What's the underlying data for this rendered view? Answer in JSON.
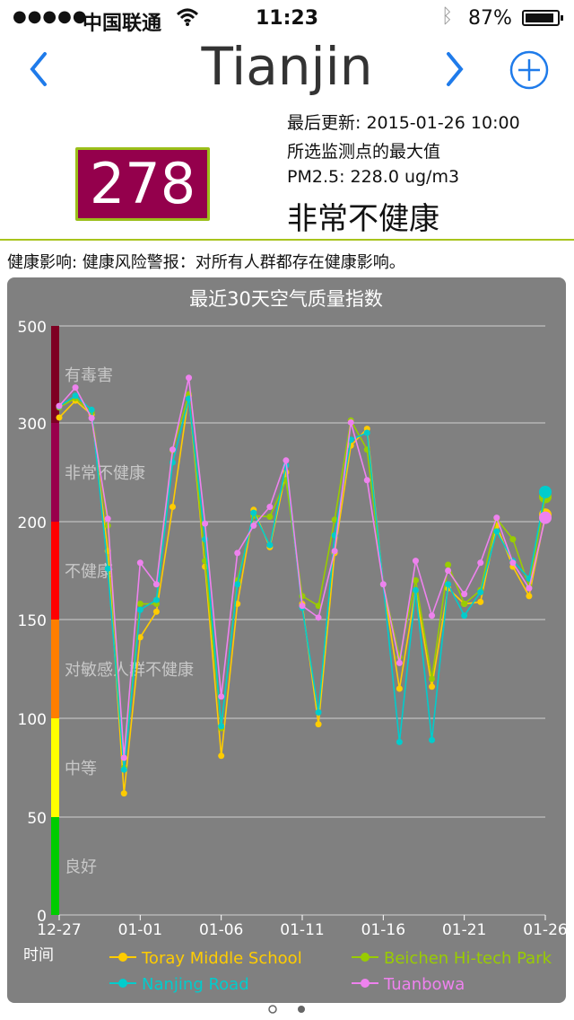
{
  "status_bar": {
    "signal": "●●●●●",
    "carrier": "中国联通",
    "time": "11:23",
    "battery": "87%"
  },
  "nav": {
    "title": "Tianjin"
  },
  "summary": {
    "aqi": "278",
    "updated": "最后更新: 2015-01-26 10:00",
    "station_note": "所选监测点的最大值",
    "pm25": "PM2.5: 228.0 ug/m3",
    "level": "非常不健康",
    "health": "健康影响: 健康风险警报：对所有人群都存在健康影响。"
  },
  "colors": {
    "aqi_box": "#94004c",
    "accent": "#a8c41c",
    "chart_bg": "#808080"
  },
  "chart_data": {
    "type": "line",
    "title": "最近30天空气质量指数",
    "xlabel": "时间",
    "ylabel": "",
    "y_tick_labels": [
      "0",
      "50",
      "100",
      "150",
      "200",
      "300",
      "500"
    ],
    "x_tick_labels": [
      "12-27",
      "01-01",
      "01-06",
      "01-11",
      "01-16",
      "01-21",
      "01-26"
    ],
    "bands": [
      {
        "label": "良好",
        "color": "#00cc00"
      },
      {
        "label": "中等",
        "color": "#ffff00"
      },
      {
        "label": "对敏感人群不健康",
        "color": "#ff7e00"
      },
      {
        "label": "不健康",
        "color": "#ff0000"
      },
      {
        "label": "非常不健康",
        "color": "#99004c"
      },
      {
        "label": "有毒害",
        "color": "#7e0023"
      }
    ],
    "categories": [
      "12-27",
      "12-28",
      "12-29",
      "12-30",
      "12-31",
      "01-01",
      "01-02",
      "01-03",
      "01-04",
      "01-05",
      "01-06",
      "01-07",
      "01-08",
      "01-09",
      "01-10",
      "01-11",
      "01-12",
      "01-13",
      "01-14",
      "01-15",
      "01-16",
      "01-17",
      "01-18",
      "01-19",
      "01-20",
      "01-21",
      "01-22",
      "01-23",
      "01-24",
      "01-25",
      "01-26"
    ],
    "series": [
      {
        "name": "Toray Middle School",
        "color": "#ffcc00",
        "values": [
          311,
          346,
          317,
          185,
          62,
          141,
          154,
          215,
          357,
          177,
          81,
          158,
          212,
          187,
          250,
          158,
          97,
          184,
          277,
          294,
          168,
          115,
          165,
          116,
          166,
          158,
          159,
          198,
          177,
          162,
          207
        ]
      },
      {
        "name": "Beichen Hi-tech Park",
        "color": "#99cc00",
        "values": [
          332,
          351,
          322,
          198,
          75,
          158,
          158,
          272,
          359,
          180,
          95,
          170,
          206,
          205,
          242,
          162,
          157,
          202,
          305,
          273,
          168,
          131,
          170,
          120,
          178,
          158,
          165,
          203,
          191,
          167,
          225
        ]
      },
      {
        "name": "Nanjing Road",
        "color": "#00cccc",
        "values": [
          334,
          356,
          327,
          176,
          74,
          155,
          160,
          260,
          350,
          191,
          96,
          168,
          209,
          188,
          257,
          156,
          103,
          193,
          283,
          290,
          168,
          88,
          165,
          89,
          168,
          152,
          164,
          195,
          180,
          171,
          230
        ]
      },
      {
        "name": "Tuanbowa",
        "color": "#ee82ee",
        "values": [
          335,
          373,
          310,
          203,
          80,
          179,
          168,
          273,
          393,
          199,
          111,
          184,
          198,
          215,
          262,
          157,
          151,
          185,
          301,
          242,
          168,
          128,
          180,
          152,
          175,
          163,
          179,
          204,
          179,
          166,
          204
        ]
      }
    ]
  }
}
